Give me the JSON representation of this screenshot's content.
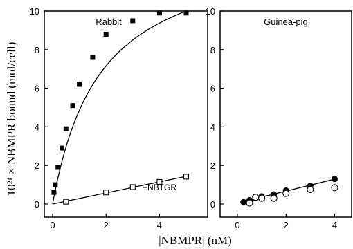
{
  "chart_data": [
    {
      "type": "scatter",
      "title": "Rabbit",
      "xlim": [
        0,
        5
      ],
      "ylim": [
        0,
        10
      ],
      "x_ticks": [
        0,
        2,
        4
      ],
      "y_ticks": [
        0,
        2,
        4,
        6,
        8,
        10
      ],
      "series": [
        {
          "marker": "filled-square",
          "fit": "curve",
          "x": [
            0.05,
            0.1,
            0.2,
            0.35,
            0.5,
            0.75,
            1.0,
            1.5,
            2.0,
            3.0,
            4.0,
            5.0
          ],
          "y": [
            0.6,
            1.0,
            1.9,
            2.9,
            3.9,
            5.1,
            6.2,
            7.6,
            8.8,
            9.5,
            9.9,
            9.9
          ]
        },
        {
          "name": "+NBTGR",
          "marker": "open-square",
          "fit": "line",
          "x": [
            0.5,
            2.0,
            3.0,
            4.0,
            5.0
          ],
          "y": [
            0.12,
            0.6,
            0.88,
            1.15,
            1.42
          ]
        }
      ]
    },
    {
      "type": "scatter",
      "title": "Guinea-pig",
      "xlim": [
        0,
        4.3
      ],
      "ylim": [
        0,
        10
      ],
      "x_ticks": [
        0,
        2,
        4
      ],
      "y_ticks": [
        0,
        2,
        4,
        6,
        8,
        10
      ],
      "series": [
        {
          "marker": "filled-circle",
          "fit": "line",
          "x": [
            0.25,
            0.5,
            0.75,
            1.0,
            1.5,
            2.0,
            3.0,
            4.0
          ],
          "y": [
            0.1,
            0.2,
            0.3,
            0.4,
            0.5,
            0.7,
            0.95,
            1.3
          ]
        },
        {
          "marker": "open-circle",
          "x": [
            0.5,
            0.75,
            1.0,
            1.5,
            2.0,
            3.0,
            4.0
          ],
          "y": [
            0.05,
            0.35,
            0.3,
            0.3,
            0.55,
            0.75,
            0.85
          ]
        }
      ]
    }
  ],
  "axes": {
    "ylabel": "10²¹ × NBMPR bound (mol/cell)",
    "xlabel": "|NBMPR| (nM)"
  }
}
